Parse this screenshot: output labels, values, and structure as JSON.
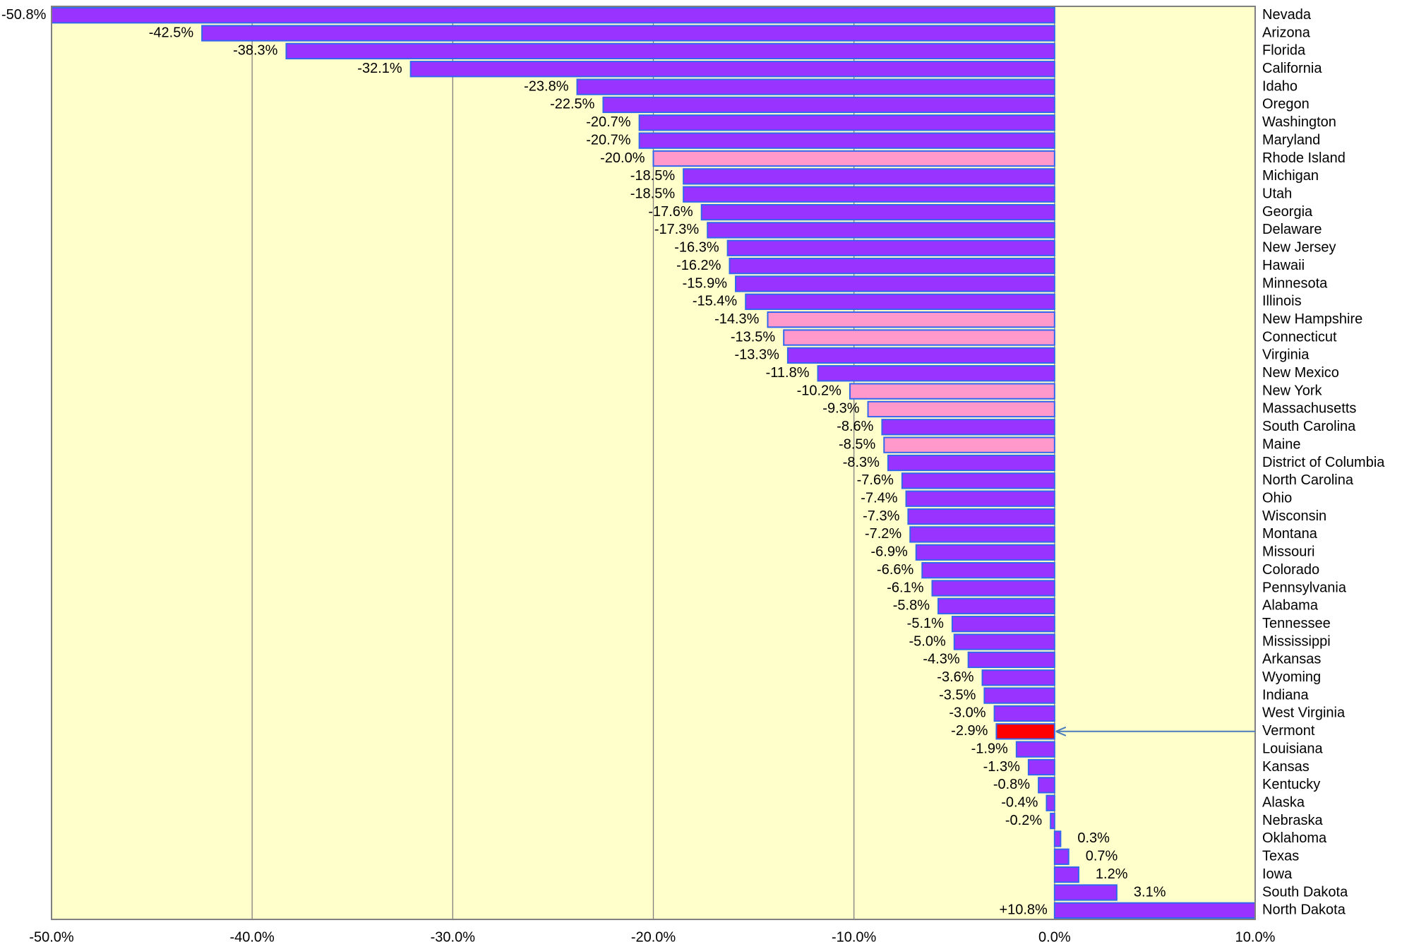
{
  "chart_data": {
    "type": "barh",
    "categories": [
      "Nevada",
      "Arizona",
      "Florida",
      "California",
      "Idaho",
      "Oregon",
      "Washington",
      "Maryland",
      "Rhode Island",
      "Michigan",
      "Utah",
      "Georgia",
      "Delaware",
      "New Jersey",
      "Hawaii",
      "Minnesota",
      "Illinois",
      "New Hampshire",
      "Connecticut",
      "Virginia",
      "New Mexico",
      "New York",
      "Massachusetts",
      "South Carolina",
      "Maine",
      "District of Columbia",
      "North Carolina",
      "Ohio",
      "Wisconsin",
      "Montana",
      "Missouri",
      "Colorado",
      "Pennsylvania",
      "Alabama",
      "Tennessee",
      "Mississippi",
      "Arkansas",
      "Wyoming",
      "Indiana",
      "West Virginia",
      "Vermont",
      "Louisiana",
      "Kansas",
      "Kentucky",
      "Alaska",
      "Nebraska",
      "Oklahoma",
      "Texas",
      "Iowa",
      "South Dakota",
      "North Dakota"
    ],
    "values": [
      -50.8,
      -42.5,
      -38.3,
      -32.1,
      -23.8,
      -22.5,
      -20.7,
      -20.7,
      -20.0,
      -18.5,
      -18.5,
      -17.6,
      -17.3,
      -16.3,
      -16.2,
      -15.9,
      -15.4,
      -14.3,
      -13.5,
      -13.3,
      -11.8,
      -10.2,
      -9.3,
      -8.6,
      -8.5,
      -8.3,
      -7.6,
      -7.4,
      -7.3,
      -7.2,
      -6.9,
      -6.6,
      -6.1,
      -5.8,
      -5.1,
      -5.0,
      -4.3,
      -3.6,
      -3.5,
      -3.0,
      -2.9,
      -1.9,
      -1.3,
      -0.8,
      -0.4,
      -0.2,
      0.3,
      0.7,
      1.2,
      3.1,
      10.8
    ],
    "value_labels": [
      "-50.8%",
      "-42.5%",
      "-38.3%",
      "-32.1%",
      "-23.8%",
      "-22.5%",
      "-20.7%",
      "-20.7%",
      "-20.0%",
      "-18.5%",
      "-18.5%",
      "-17.6%",
      "-17.3%",
      "-16.3%",
      "-16.2%",
      "-15.9%",
      "-15.4%",
      "-14.3%",
      "-13.5%",
      "-13.3%",
      "-11.8%",
      "-10.2%",
      "-9.3%",
      "-8.6%",
      "-8.5%",
      "-8.3%",
      "-7.6%",
      "-7.4%",
      "-7.3%",
      "-7.2%",
      "-6.9%",
      "-6.6%",
      "-6.1%",
      "-5.8%",
      "-5.1%",
      "-5.0%",
      "-4.3%",
      "-3.6%",
      "-3.5%",
      "-3.0%",
      "-2.9%",
      "-1.9%",
      "-1.3%",
      "-0.8%",
      "-0.4%",
      "-0.2%",
      "0.3%",
      "0.7%",
      "1.2%",
      "3.1%",
      "+10.8%"
    ],
    "colors": [
      "#9933ff",
      "#9933ff",
      "#9933ff",
      "#9933ff",
      "#9933ff",
      "#9933ff",
      "#9933ff",
      "#9933ff",
      "#ff99cc",
      "#9933ff",
      "#9933ff",
      "#9933ff",
      "#9933ff",
      "#9933ff",
      "#9933ff",
      "#9933ff",
      "#9933ff",
      "#ff99cc",
      "#ff99cc",
      "#9933ff",
      "#9933ff",
      "#ff99cc",
      "#ff99cc",
      "#9933ff",
      "#ff99cc",
      "#9933ff",
      "#9933ff",
      "#9933ff",
      "#9933ff",
      "#9933ff",
      "#9933ff",
      "#9933ff",
      "#9933ff",
      "#9933ff",
      "#9933ff",
      "#9933ff",
      "#9933ff",
      "#9933ff",
      "#9933ff",
      "#9933ff",
      "#ff0000",
      "#9933ff",
      "#9933ff",
      "#9933ff",
      "#9933ff",
      "#9933ff",
      "#9933ff",
      "#9933ff",
      "#9933ff",
      "#9933ff",
      "#9933ff"
    ],
    "xlim": [
      -50,
      10
    ],
    "xticks": [
      {
        "value": -50,
        "label": "-50.0%"
      },
      {
        "value": -40,
        "label": "-40.0%"
      },
      {
        "value": -30,
        "label": "-30.0%"
      },
      {
        "value": -20,
        "label": "-20.0%"
      },
      {
        "value": -10,
        "label": "-10.0%"
      },
      {
        "value": 0,
        "label": "0.0%"
      },
      {
        "value": 10,
        "label": "10.0%"
      }
    ],
    "grid": true,
    "background": "#ffffcc"
  }
}
